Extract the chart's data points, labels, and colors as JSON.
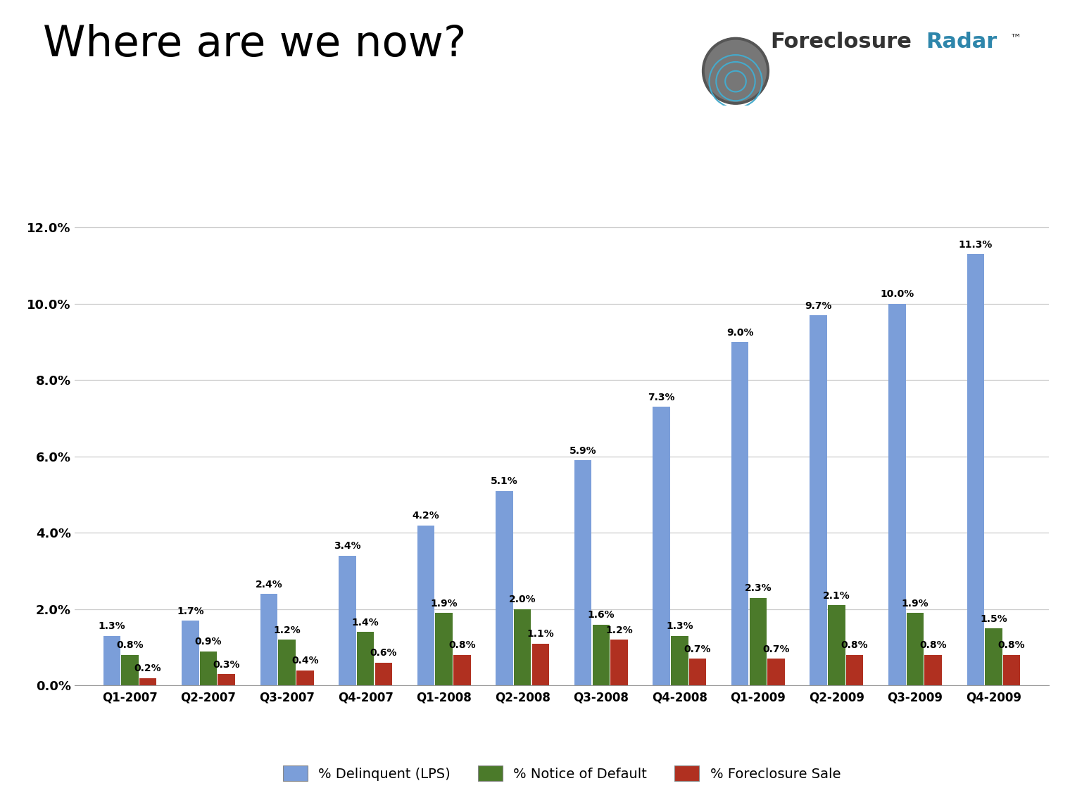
{
  "title_part1": "Where are we now?",
  "categories": [
    "Q1-2007",
    "Q2-2007",
    "Q3-2007",
    "Q4-2007",
    "Q1-2008",
    "Q2-2008",
    "Q3-2008",
    "Q4-2008",
    "Q1-2009",
    "Q2-2009",
    "Q3-2009",
    "Q4-2009"
  ],
  "delinquent": [
    1.3,
    1.7,
    2.4,
    3.4,
    4.2,
    5.1,
    5.9,
    7.3,
    9.0,
    9.7,
    10.0,
    11.3
  ],
  "notice_of_default": [
    0.8,
    0.9,
    1.2,
    1.4,
    1.9,
    2.0,
    1.6,
    1.3,
    2.3,
    2.1,
    1.9,
    1.5
  ],
  "foreclosure_sale": [
    0.2,
    0.3,
    0.4,
    0.6,
    0.8,
    1.1,
    1.2,
    0.7,
    0.7,
    0.8,
    0.8,
    0.8
  ],
  "color_delinquent": "#7B9ED9",
  "color_notice": "#4B7A2A",
  "color_foreclosure": "#B03020",
  "ylim_max": 0.128,
  "yticks": [
    0.0,
    0.02,
    0.04,
    0.06,
    0.08,
    0.1,
    0.12
  ],
  "ytick_labels": [
    "0.0%",
    "2.0%",
    "4.0%",
    "6.0%",
    "8.0%",
    "10.0%",
    "12.0%"
  ],
  "legend_delinquent": "% Delinquent (LPS)",
  "legend_notice": "% Notice of Default",
  "legend_foreclosure": "% Foreclosure Sale",
  "background_color": "#FFFFFF",
  "title_fontsize": 44,
  "bar_label_fontsize": 10,
  "grid_color": "#CCCCCC",
  "bar_width": 0.22,
  "bar_gap": 0.01
}
